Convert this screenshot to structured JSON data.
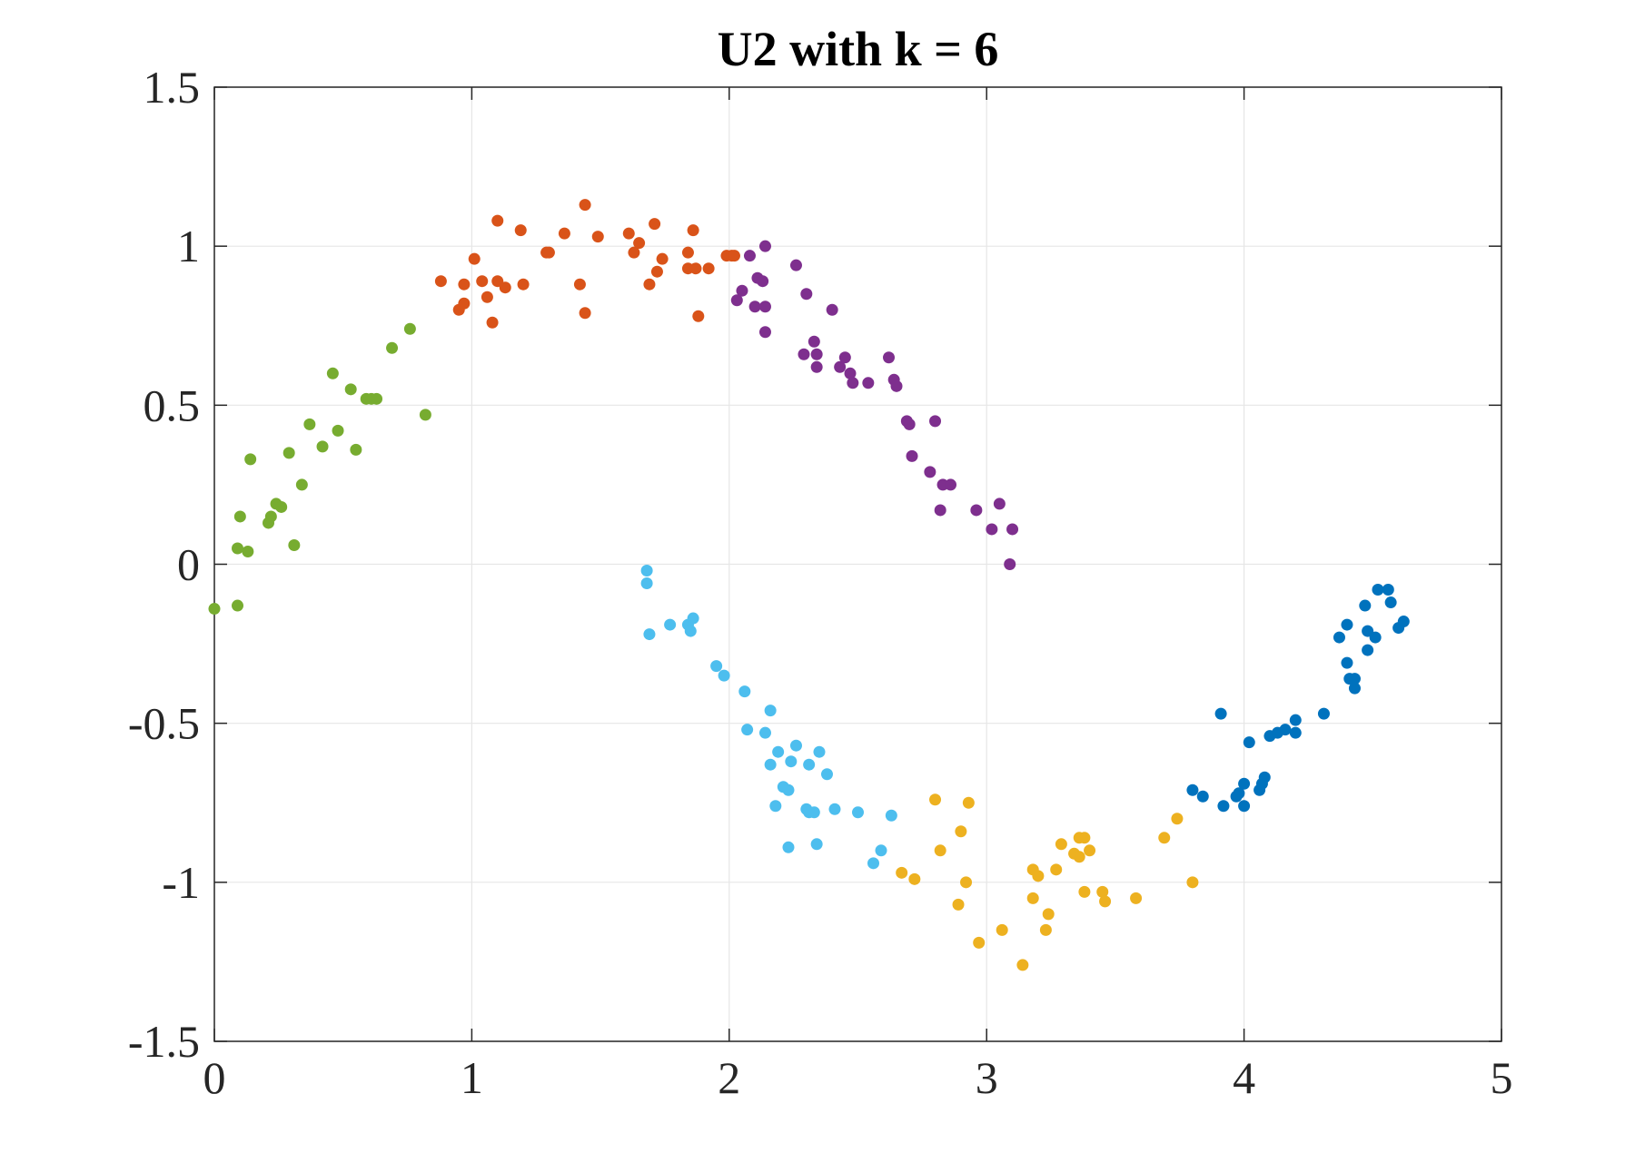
{
  "chart_data": {
    "type": "scatter",
    "title": "U2 with k = 6",
    "xlabel": "",
    "ylabel": "",
    "xlim": [
      0,
      5
    ],
    "ylim": [
      -1.5,
      1.5
    ],
    "xticks": [
      0,
      1,
      2,
      3,
      4,
      5
    ],
    "xtick_labels": [
      "0",
      "1",
      "2",
      "3",
      "4",
      "5"
    ],
    "yticks": [
      -1.5,
      -1,
      -0.5,
      0,
      0.5,
      1,
      1.5
    ],
    "ytick_labels": [
      "-1.5",
      "-1",
      "-0.5",
      "0",
      "0.5",
      "1",
      "1.5"
    ],
    "grid": true,
    "legend": "none",
    "series": [
      {
        "color": "#77AC30",
        "points": [
          [
            0.0,
            -0.14
          ],
          [
            0.09,
            -0.13
          ],
          [
            0.09,
            0.05
          ],
          [
            0.1,
            0.15
          ],
          [
            0.13,
            0.04
          ],
          [
            0.14,
            0.33
          ],
          [
            0.21,
            0.13
          ],
          [
            0.22,
            0.15
          ],
          [
            0.24,
            0.19
          ],
          [
            0.26,
            0.18
          ],
          [
            0.29,
            0.35
          ],
          [
            0.31,
            0.06
          ],
          [
            0.34,
            0.25
          ],
          [
            0.37,
            0.44
          ],
          [
            0.42,
            0.37
          ],
          [
            0.46,
            0.6
          ],
          [
            0.48,
            0.42
          ],
          [
            0.53,
            0.55
          ],
          [
            0.55,
            0.36
          ],
          [
            0.59,
            0.52
          ],
          [
            0.61,
            0.52
          ],
          [
            0.63,
            0.52
          ],
          [
            0.69,
            0.68
          ],
          [
            0.76,
            0.74
          ],
          [
            0.82,
            0.47
          ]
        ]
      },
      {
        "color": "#D95319",
        "points": [
          [
            0.88,
            0.89
          ],
          [
            0.95,
            0.8
          ],
          [
            0.97,
            0.82
          ],
          [
            0.97,
            0.88
          ],
          [
            1.01,
            0.96
          ],
          [
            1.04,
            0.89
          ],
          [
            1.06,
            0.84
          ],
          [
            1.08,
            0.76
          ],
          [
            1.1,
            1.08
          ],
          [
            1.1,
            0.89
          ],
          [
            1.13,
            0.87
          ],
          [
            1.19,
            1.05
          ],
          [
            1.2,
            0.88
          ],
          [
            1.29,
            0.98
          ],
          [
            1.3,
            0.98
          ],
          [
            1.36,
            1.04
          ],
          [
            1.42,
            0.88
          ],
          [
            1.44,
            0.79
          ],
          [
            1.44,
            1.13
          ],
          [
            1.49,
            1.03
          ],
          [
            1.61,
            1.04
          ],
          [
            1.63,
            0.98
          ],
          [
            1.65,
            1.01
          ],
          [
            1.69,
            0.88
          ],
          [
            1.71,
            1.07
          ],
          [
            1.72,
            0.92
          ],
          [
            1.74,
            0.96
          ],
          [
            1.84,
            0.93
          ],
          [
            1.84,
            0.98
          ],
          [
            1.86,
            1.05
          ],
          [
            1.87,
            0.93
          ],
          [
            1.88,
            0.78
          ],
          [
            1.92,
            0.93
          ],
          [
            1.99,
            0.97
          ],
          [
            2.01,
            0.97
          ],
          [
            2.02,
            0.97
          ]
        ]
      },
      {
        "color": "#7E2F8E",
        "points": [
          [
            2.03,
            0.83
          ],
          [
            2.05,
            0.86
          ],
          [
            2.08,
            0.97
          ],
          [
            2.1,
            0.81
          ],
          [
            2.11,
            0.9
          ],
          [
            2.13,
            0.89
          ],
          [
            2.14,
            0.81
          ],
          [
            2.14,
            0.73
          ],
          [
            2.14,
            1.0
          ],
          [
            2.26,
            0.94
          ],
          [
            2.29,
            0.66
          ],
          [
            2.3,
            0.85
          ],
          [
            2.33,
            0.7
          ],
          [
            2.34,
            0.62
          ],
          [
            2.34,
            0.66
          ],
          [
            2.4,
            0.8
          ],
          [
            2.43,
            0.62
          ],
          [
            2.45,
            0.65
          ],
          [
            2.47,
            0.6
          ],
          [
            2.48,
            0.57
          ],
          [
            2.54,
            0.57
          ],
          [
            2.62,
            0.65
          ],
          [
            2.64,
            0.58
          ],
          [
            2.65,
            0.56
          ],
          [
            2.69,
            0.45
          ],
          [
            2.7,
            0.44
          ],
          [
            2.71,
            0.34
          ],
          [
            2.78,
            0.29
          ],
          [
            2.8,
            0.45
          ],
          [
            2.82,
            0.17
          ],
          [
            2.83,
            0.25
          ],
          [
            2.86,
            0.25
          ],
          [
            2.96,
            0.17
          ],
          [
            3.02,
            0.11
          ],
          [
            3.05,
            0.19
          ],
          [
            3.09,
            0.0
          ],
          [
            3.1,
            0.11
          ]
        ]
      },
      {
        "color": "#4DBEEE",
        "points": [
          [
            1.68,
            -0.02
          ],
          [
            1.68,
            -0.06
          ],
          [
            1.69,
            -0.22
          ],
          [
            1.77,
            -0.19
          ],
          [
            1.84,
            -0.19
          ],
          [
            1.85,
            -0.21
          ],
          [
            1.86,
            -0.17
          ],
          [
            1.95,
            -0.32
          ],
          [
            1.98,
            -0.35
          ],
          [
            2.06,
            -0.4
          ],
          [
            2.07,
            -0.52
          ],
          [
            2.14,
            -0.53
          ],
          [
            2.16,
            -0.46
          ],
          [
            2.16,
            -0.63
          ],
          [
            2.18,
            -0.76
          ],
          [
            2.19,
            -0.59
          ],
          [
            2.21,
            -0.7
          ],
          [
            2.23,
            -0.89
          ],
          [
            2.23,
            -0.71
          ],
          [
            2.24,
            -0.62
          ],
          [
            2.26,
            -0.57
          ],
          [
            2.3,
            -0.77
          ],
          [
            2.31,
            -0.78
          ],
          [
            2.31,
            -0.63
          ],
          [
            2.33,
            -0.78
          ],
          [
            2.34,
            -0.88
          ],
          [
            2.35,
            -0.59
          ],
          [
            2.38,
            -0.66
          ],
          [
            2.41,
            -0.77
          ],
          [
            2.5,
            -0.78
          ],
          [
            2.56,
            -0.94
          ],
          [
            2.59,
            -0.9
          ],
          [
            2.63,
            -0.79
          ]
        ]
      },
      {
        "color": "#EDB120",
        "points": [
          [
            2.67,
            -0.97
          ],
          [
            2.72,
            -0.99
          ],
          [
            2.8,
            -0.74
          ],
          [
            2.82,
            -0.9
          ],
          [
            2.89,
            -1.07
          ],
          [
            2.9,
            -0.84
          ],
          [
            2.92,
            -1.0
          ],
          [
            2.93,
            -0.75
          ],
          [
            2.97,
            -1.19
          ],
          [
            3.06,
            -1.15
          ],
          [
            3.14,
            -1.26
          ],
          [
            3.18,
            -1.05
          ],
          [
            3.18,
            -0.96
          ],
          [
            3.2,
            -0.98
          ],
          [
            3.23,
            -1.15
          ],
          [
            3.24,
            -1.1
          ],
          [
            3.27,
            -0.96
          ],
          [
            3.29,
            -0.88
          ],
          [
            3.34,
            -0.91
          ],
          [
            3.36,
            -0.92
          ],
          [
            3.36,
            -0.86
          ],
          [
            3.38,
            -0.86
          ],
          [
            3.38,
            -1.03
          ],
          [
            3.4,
            -0.9
          ],
          [
            3.45,
            -1.03
          ],
          [
            3.46,
            -1.06
          ],
          [
            3.58,
            -1.05
          ],
          [
            3.69,
            -0.86
          ],
          [
            3.74,
            -0.8
          ],
          [
            3.8,
            -1.0
          ]
        ]
      },
      {
        "color": "#0072BD",
        "points": [
          [
            3.8,
            -0.71
          ],
          [
            3.84,
            -0.73
          ],
          [
            3.91,
            -0.47
          ],
          [
            3.92,
            -0.76
          ],
          [
            3.97,
            -0.73
          ],
          [
            3.98,
            -0.72
          ],
          [
            4.0,
            -0.69
          ],
          [
            4.0,
            -0.76
          ],
          [
            4.02,
            -0.56
          ],
          [
            4.06,
            -0.71
          ],
          [
            4.07,
            -0.69
          ],
          [
            4.08,
            -0.67
          ],
          [
            4.1,
            -0.54
          ],
          [
            4.13,
            -0.53
          ],
          [
            4.16,
            -0.52
          ],
          [
            4.2,
            -0.49
          ],
          [
            4.2,
            -0.53
          ],
          [
            4.31,
            -0.47
          ],
          [
            4.37,
            -0.23
          ],
          [
            4.4,
            -0.19
          ],
          [
            4.4,
            -0.31
          ],
          [
            4.41,
            -0.36
          ],
          [
            4.43,
            -0.39
          ],
          [
            4.43,
            -0.36
          ],
          [
            4.47,
            -0.13
          ],
          [
            4.48,
            -0.21
          ],
          [
            4.48,
            -0.27
          ],
          [
            4.51,
            -0.23
          ],
          [
            4.52,
            -0.08
          ],
          [
            4.56,
            -0.08
          ],
          [
            4.57,
            -0.12
          ],
          [
            4.6,
            -0.2
          ],
          [
            4.62,
            -0.18
          ]
        ]
      }
    ]
  }
}
